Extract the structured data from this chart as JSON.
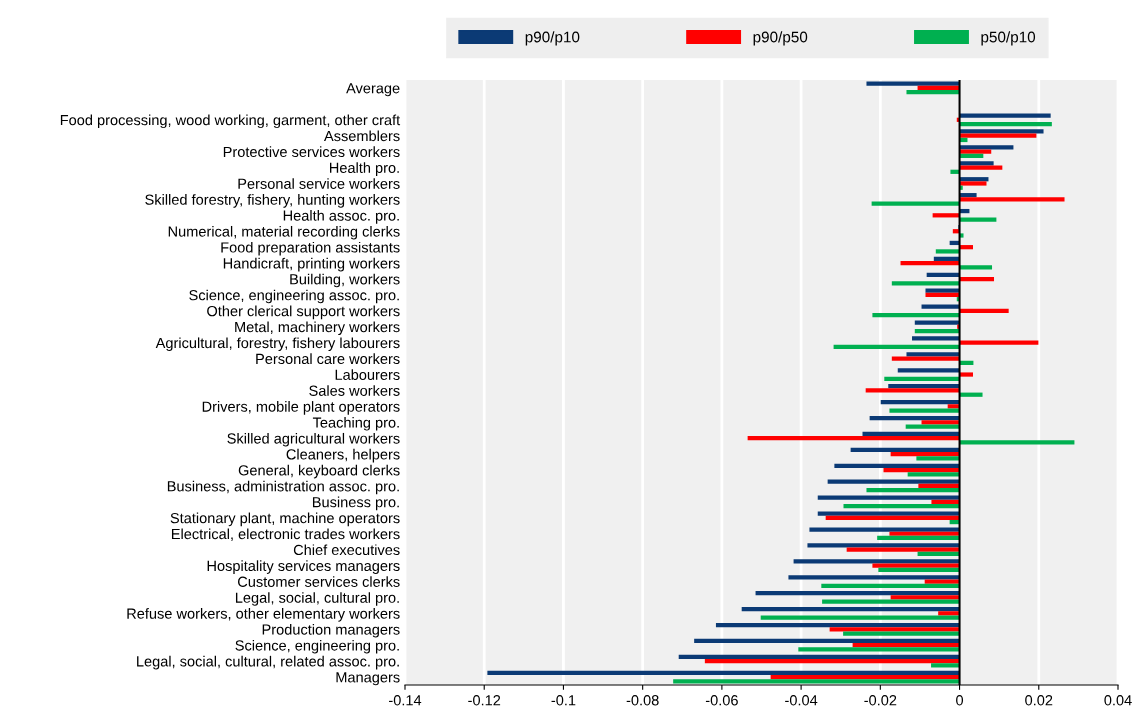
{
  "chart_data": {
    "type": "bar",
    "orientation": "horizontal",
    "categories": [
      "Average",
      null,
      "Food processing, wood working, garment, other craft",
      "Assemblers",
      "Protective services workers",
      "Health pro.",
      "Personal service workers",
      "Skilled forestry, fishery, hunting workers",
      "Health assoc. pro.",
      "Numerical, material recording clerks",
      "Food preparation assistants",
      "Handicraft, printing workers",
      "Building, workers",
      "Science, engineering assoc. pro.",
      "Other clerical support workers",
      "Metal, machinery workers",
      "Agricultural, forestry, fishery labourers",
      "Personal care workers",
      "Labourers",
      "Sales workers",
      "Drivers, mobile plant operators",
      "Teaching pro.",
      "Skilled agricultural workers",
      "Cleaners, helpers",
      "General, keyboard clerks",
      "Business, administration assoc. pro.",
      "Business pro.",
      "Stationary plant, machine operators",
      "Electrical, electronic trades workers",
      "Chief executives",
      "Hospitality services managers",
      "Customer services clerks",
      "Legal, social, cultural pro.",
      "Refuse workers, other elementary workers",
      "Production managers",
      "Science, engineering pro.",
      "Legal, social, cultural, related assoc. pro.",
      "Managers"
    ],
    "series": [
      {
        "name": "p90/p10",
        "color": "#0b3a75",
        "values": [
          -0.0235,
          null,
          0.023,
          0.0212,
          0.0136,
          0.0086,
          0.0073,
          0.0043,
          0.0025,
          -0.0003,
          -0.0025,
          -0.0065,
          -0.0083,
          -0.0086,
          -0.0096,
          -0.0113,
          -0.012,
          -0.0134,
          -0.0156,
          -0.018,
          -0.0199,
          -0.0227,
          -0.0245,
          -0.0275,
          -0.0316,
          -0.0333,
          -0.0358,
          -0.0358,
          -0.0379,
          -0.0384,
          -0.0419,
          -0.0432,
          -0.0515,
          -0.055,
          -0.0615,
          -0.067,
          -0.0709,
          -0.1192
        ]
      },
      {
        "name": "p90/p50",
        "color": "#ff0000",
        "values": [
          -0.0106,
          null,
          -0.0007,
          0.0194,
          0.008,
          0.0108,
          0.0068,
          0.0265,
          -0.0068,
          -0.0017,
          0.0034,
          -0.0149,
          0.0087,
          -0.0086,
          0.0124,
          -0.0006,
          0.0199,
          -0.0171,
          0.0034,
          -0.0237,
          -0.003,
          -0.0096,
          -0.0535,
          -0.0174,
          -0.0192,
          -0.0104,
          -0.0071,
          -0.0338,
          -0.0177,
          -0.0285,
          -0.022,
          -0.0088,
          -0.0174,
          -0.0054,
          -0.0328,
          -0.027,
          -0.0643,
          -0.0477
        ]
      },
      {
        "name": "p50/p10",
        "color": "#00b050",
        "values": [
          -0.0134,
          null,
          0.0233,
          0.002,
          0.006,
          -0.0023,
          0.0008,
          -0.0222,
          0.0093,
          0.001,
          -0.006,
          0.0082,
          -0.0171,
          -0.0007,
          -0.022,
          -0.0113,
          -0.0318,
          0.0035,
          -0.019,
          0.0058,
          -0.0177,
          -0.0136,
          0.029,
          -0.0109,
          -0.0131,
          -0.0235,
          -0.0293,
          -0.0025,
          -0.0208,
          -0.0106,
          -0.0205,
          -0.0349,
          -0.0347,
          -0.0502,
          -0.0294,
          -0.0407,
          -0.0072,
          -0.0723
        ]
      }
    ],
    "xlim": [
      -0.14,
      0.04
    ],
    "xticks": [
      -0.14,
      -0.12,
      -0.1,
      -0.08,
      -0.06,
      -0.04,
      -0.02,
      0,
      0.02,
      0.04
    ],
    "grid": "x",
    "legend": "top"
  }
}
